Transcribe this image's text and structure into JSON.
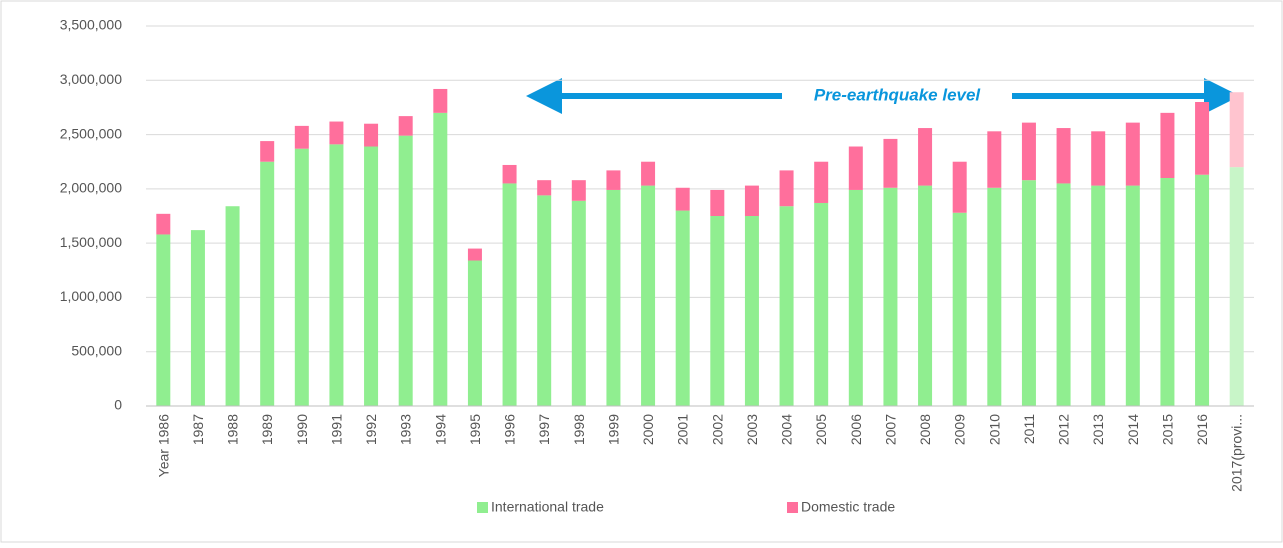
{
  "chart_data": {
    "type": "stacked_bar",
    "annotation": "Pre-earthquake level",
    "categories": [
      "Year 1986",
      "1987",
      "1988",
      "1989",
      "1990",
      "1991",
      "1992",
      "1993",
      "1994",
      "1995",
      "1996",
      "1997",
      "1998",
      "1999",
      "2000",
      "2001",
      "2002",
      "2003",
      "2004",
      "2005",
      "2006",
      "2007",
      "2008",
      "2009",
      "2010",
      "2011",
      "2012",
      "2013",
      "2014",
      "2015",
      "2016",
      "2017(provi..."
    ],
    "series": [
      {
        "name": "International trade",
        "color": "#90ee90",
        "colors": [
          "#90ee90",
          "#90ee90",
          "#90ee90",
          "#90ee90",
          "#90ee90",
          "#90ee90",
          "#90ee90",
          "#90ee90",
          "#90ee90",
          "#90ee90",
          "#90ee90",
          "#90ee90",
          "#90ee90",
          "#90ee90",
          "#90ee90",
          "#90ee90",
          "#90ee90",
          "#90ee90",
          "#90ee90",
          "#90ee90",
          "#90ee90",
          "#90ee90",
          "#90ee90",
          "#90ee90",
          "#90ee90",
          "#90ee90",
          "#90ee90",
          "#90ee90",
          "#90ee90",
          "#90ee90",
          "#90ee90",
          "#c8f5c8"
        ],
        "values": [
          1580000,
          1620000,
          1840000,
          2250000,
          2370000,
          2410000,
          2390000,
          2490000,
          2700000,
          1340000,
          2050000,
          1940000,
          1890000,
          1990000,
          2030000,
          1800000,
          1750000,
          1750000,
          1840000,
          1870000,
          1990000,
          2010000,
          2030000,
          1780000,
          2010000,
          2080000,
          2050000,
          2030000,
          2030000,
          2100000,
          2130000,
          2200000
        ]
      },
      {
        "name": "Domestic trade",
        "color": "#ff6f9c",
        "colors": [
          "#ff6f9c",
          "#ff6f9c",
          "#ff6f9c",
          "#ff6f9c",
          "#ff6f9c",
          "#ff6f9c",
          "#ff6f9c",
          "#ff6f9c",
          "#ff6f9c",
          "#ff6f9c",
          "#ff6f9c",
          "#ff6f9c",
          "#ff6f9c",
          "#ff6f9c",
          "#ff6f9c",
          "#ff6f9c",
          "#ff6f9c",
          "#ff6f9c",
          "#ff6f9c",
          "#ff6f9c",
          "#ff6f9c",
          "#ff6f9c",
          "#ff6f9c",
          "#ff6f9c",
          "#ff6f9c",
          "#ff6f9c",
          "#ff6f9c",
          "#ff6f9c",
          "#ff6f9c",
          "#ff6f9c",
          "#ff6f9c",
          "#ffc4cf"
        ],
        "values": [
          190000,
          0,
          0,
          190000,
          210000,
          210000,
          210000,
          180000,
          220000,
          110000,
          170000,
          140000,
          190000,
          180000,
          220000,
          210000,
          240000,
          280000,
          330000,
          380000,
          400000,
          450000,
          530000,
          470000,
          520000,
          530000,
          510000,
          500000,
          580000,
          600000,
          670000,
          690000
        ]
      }
    ],
    "ylim": [
      0,
      3500000
    ],
    "yticks": [
      0,
      {
        "value": 500000,
        "label": "500,000"
      },
      {
        "value": 1000000,
        "label": "1,000,000"
      },
      {
        "value": 1500000,
        "label": "1,500,000"
      },
      {
        "value": 2000000,
        "label": "2,000,000"
      },
      {
        "value": 2500000,
        "label": "2,500,000"
      },
      {
        "value": 3000000,
        "label": "3,000,000"
      },
      {
        "value": 3500000,
        "label": "3,500,000"
      }
    ],
    "grid": true,
    "legend": "bottom"
  }
}
